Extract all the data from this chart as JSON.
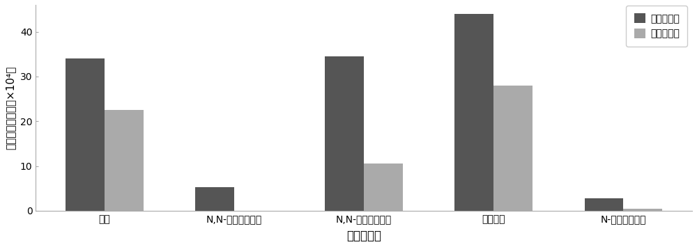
{
  "categories": [
    "乙腔",
    "N,N-二甲基乙酰胺",
    "N,N-二甲基甲酰胺",
    "二甲亚砂",
    "N-甲基吠和烷酮"
  ],
  "series": [
    {
      "name": "甲磺酸甲酯",
      "values": [
        34.0,
        5.2,
        34.5,
        44.0,
        2.8
      ],
      "color": "#555555"
    },
    {
      "name": "甲磺酸乙酯",
      "values": [
        22.5,
        0.0,
        10.5,
        28.0,
        0.4
      ],
      "color": "#aaaaaa"
    }
  ],
  "ylabel": "衍生生物峰面积（×10⁴）",
  "xlabel": "衍生化溶剂",
  "ylim": [
    0,
    46
  ],
  "yticks": [
    0,
    10,
    20,
    30,
    40
  ],
  "bar_width": 0.3,
  "figsize": [
    10.0,
    3.55
  ],
  "dpi": 100,
  "background_color": "#ffffff",
  "legend_fontsize": 10,
  "axis_fontsize": 11,
  "tick_fontsize": 10,
  "xlabel_fontsize": 12
}
